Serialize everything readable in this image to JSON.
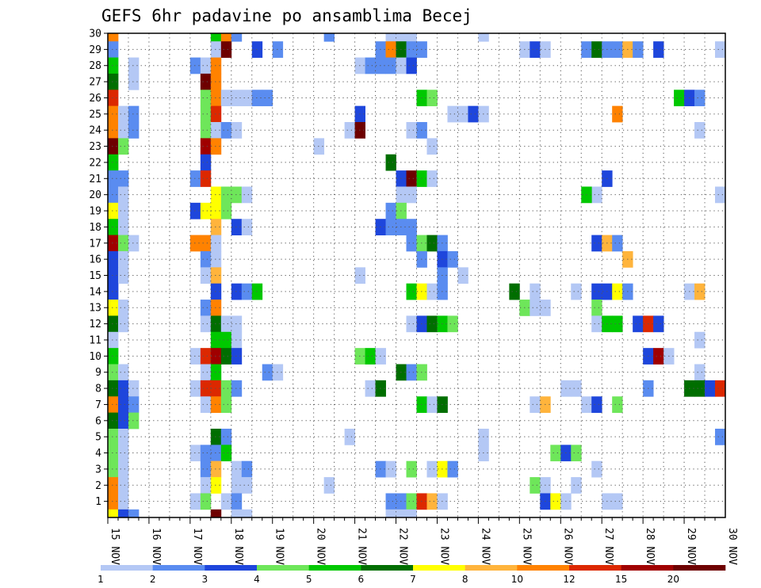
{
  "chart_data": {
    "type": "heatmap",
    "title": "GEFS 6hr padavine po ansamblima Becej",
    "xlabel": "",
    "ylabel": "",
    "x_tick_labels": [
      "15 NOV",
      "16 NOV",
      "17 NOV",
      "18 NOV",
      "19 NOV",
      "20 NOV",
      "21 NOV",
      "22 NOV",
      "23 NOV",
      "24 NOV",
      "25 NOV",
      "26 NOV",
      "27 NOV",
      "28 NOV",
      "29 NOV",
      "30 NOV"
    ],
    "y_tick_labels": [
      "1",
      "2",
      "3",
      "4",
      "5",
      "6",
      "7",
      "8",
      "9",
      "10",
      "11",
      "12",
      "13",
      "14",
      "15",
      "16",
      "17",
      "18",
      "19",
      "20",
      "21",
      "22",
      "23",
      "24",
      "25",
      "26",
      "27",
      "28",
      "29",
      "30"
    ],
    "grid": "dotted",
    "x_range_days": [
      15,
      30
    ],
    "y_range_members": [
      0,
      30
    ],
    "colorbar": {
      "labels": [
        "1",
        "2",
        "3",
        "4",
        "5",
        "6",
        "7",
        "8",
        "10",
        "12",
        "15",
        "20"
      ],
      "colors": [
        "#b4c8f5",
        "#5a8cf0",
        "#1e46dc",
        "#6ee65a",
        "#00c800",
        "#006e00",
        "#ffff00",
        "#ffb43c",
        "#ff8200",
        "#dc2800",
        "#a00000",
        "#6e0000"
      ]
    },
    "cells_format": "[member, day, precip_level_index]",
    "cells": [
      [
        30,
        15.0,
        9
      ],
      [
        30,
        17.5,
        5
      ],
      [
        30,
        17.75,
        9
      ],
      [
        30,
        18.0,
        2
      ],
      [
        30,
        20.25,
        2
      ],
      [
        30,
        21.75,
        1
      ],
      [
        30,
        22.0,
        1
      ],
      [
        30,
        22.25,
        1
      ],
      [
        30,
        24.0,
        1
      ],
      [
        29,
        15.0,
        2
      ],
      [
        29,
        17.5,
        1
      ],
      [
        29,
        17.75,
        12
      ],
      [
        29,
        18.5,
        3
      ],
      [
        29,
        19.0,
        2
      ],
      [
        29,
        21.5,
        2
      ],
      [
        29,
        21.75,
        9
      ],
      [
        29,
        22.0,
        6
      ],
      [
        29,
        22.25,
        2
      ],
      [
        29,
        22.5,
        2
      ],
      [
        29,
        25.0,
        1
      ],
      [
        29,
        25.25,
        3
      ],
      [
        29,
        25.5,
        1
      ],
      [
        29,
        26.5,
        2
      ],
      [
        29,
        26.75,
        6
      ],
      [
        29,
        27.0,
        2
      ],
      [
        29,
        27.25,
        2
      ],
      [
        29,
        27.5,
        8
      ],
      [
        29,
        27.75,
        2
      ],
      [
        29,
        28.25,
        3
      ],
      [
        29,
        29.75,
        1
      ],
      [
        28,
        15.0,
        5
      ],
      [
        28,
        15.5,
        1
      ],
      [
        28,
        17.0,
        2
      ],
      [
        28,
        17.25,
        1
      ],
      [
        28,
        17.5,
        9
      ],
      [
        28,
        21.0,
        1
      ],
      [
        28,
        21.25,
        2
      ],
      [
        28,
        21.5,
        2
      ],
      [
        28,
        21.75,
        2
      ],
      [
        28,
        22.0,
        1
      ],
      [
        28,
        22.25,
        3
      ],
      [
        27,
        15.0,
        6
      ],
      [
        27,
        15.5,
        1
      ],
      [
        27,
        17.25,
        12
      ],
      [
        27,
        17.5,
        9
      ],
      [
        26,
        15.0,
        10
      ],
      [
        26,
        17.25,
        4
      ],
      [
        26,
        17.5,
        9
      ],
      [
        26,
        17.75,
        1
      ],
      [
        26,
        18.0,
        1
      ],
      [
        26,
        18.25,
        1
      ],
      [
        26,
        18.5,
        2
      ],
      [
        26,
        18.75,
        2
      ],
      [
        26,
        22.5,
        5
      ],
      [
        26,
        22.75,
        4
      ],
      [
        26,
        28.75,
        5
      ],
      [
        26,
        29.0,
        3
      ],
      [
        26,
        29.25,
        2
      ],
      [
        25,
        15.0,
        9
      ],
      [
        25,
        15.25,
        1
      ],
      [
        25,
        15.5,
        2
      ],
      [
        25,
        17.25,
        4
      ],
      [
        25,
        17.5,
        10
      ],
      [
        25,
        21.0,
        3
      ],
      [
        25,
        23.25,
        1
      ],
      [
        25,
        23.5,
        1
      ],
      [
        25,
        23.75,
        3
      ],
      [
        25,
        24.0,
        1
      ],
      [
        25,
        27.25,
        9
      ],
      [
        24,
        15.0,
        9
      ],
      [
        24,
        15.25,
        1
      ],
      [
        24,
        15.5,
        2
      ],
      [
        24,
        17.25,
        4
      ],
      [
        24,
        17.5,
        1
      ],
      [
        24,
        17.75,
        2
      ],
      [
        24,
        18.0,
        1
      ],
      [
        24,
        20.75,
        1
      ],
      [
        24,
        21.0,
        12
      ],
      [
        24,
        22.25,
        1
      ],
      [
        24,
        22.5,
        2
      ],
      [
        24,
        29.25,
        1
      ],
      [
        23,
        15.0,
        12
      ],
      [
        23,
        15.25,
        4
      ],
      [
        23,
        17.25,
        11
      ],
      [
        23,
        17.5,
        9
      ],
      [
        23,
        20.0,
        1
      ],
      [
        23,
        22.75,
        1
      ],
      [
        22,
        15.0,
        5
      ],
      [
        22,
        17.25,
        3
      ],
      [
        22,
        21.75,
        6
      ],
      [
        21,
        15.0,
        2
      ],
      [
        21,
        15.25,
        2
      ],
      [
        21,
        17.0,
        2
      ],
      [
        21,
        17.25,
        10
      ],
      [
        21,
        22.0,
        3
      ],
      [
        21,
        22.25,
        12
      ],
      [
        21,
        22.5,
        5
      ],
      [
        21,
        22.75,
        1
      ],
      [
        21,
        27.0,
        3
      ],
      [
        20,
        15.0,
        2
      ],
      [
        20,
        15.25,
        1
      ],
      [
        20,
        17.5,
        7
      ],
      [
        20,
        17.75,
        4
      ],
      [
        20,
        18.0,
        4
      ],
      [
        20,
        18.25,
        1
      ],
      [
        20,
        22.0,
        1
      ],
      [
        20,
        22.25,
        1
      ],
      [
        20,
        26.75,
        1
      ],
      [
        20,
        26.5,
        5
      ],
      [
        20,
        29.75,
        1
      ],
      [
        19,
        15.0,
        7
      ],
      [
        19,
        15.25,
        1
      ],
      [
        19,
        17.0,
        3
      ],
      [
        19,
        17.25,
        7
      ],
      [
        19,
        17.5,
        7
      ],
      [
        19,
        17.75,
        4
      ],
      [
        19,
        21.75,
        2
      ],
      [
        19,
        22.0,
        4
      ],
      [
        18,
        15.0,
        5
      ],
      [
        18,
        15.25,
        1
      ],
      [
        18,
        17.5,
        8
      ],
      [
        18,
        18.0,
        3
      ],
      [
        18,
        18.25,
        1
      ],
      [
        18,
        21.5,
        3
      ],
      [
        18,
        21.75,
        2
      ],
      [
        18,
        22.0,
        2
      ],
      [
        18,
        22.25,
        2
      ],
      [
        17,
        15.0,
        11
      ],
      [
        17,
        15.25,
        4
      ],
      [
        17,
        15.5,
        1
      ],
      [
        17,
        17.0,
        9
      ],
      [
        17,
        17.25,
        9
      ],
      [
        17,
        17.5,
        1
      ],
      [
        17,
        22.25,
        2
      ],
      [
        17,
        22.5,
        4
      ],
      [
        17,
        22.75,
        6
      ],
      [
        17,
        23.0,
        2
      ],
      [
        17,
        26.75,
        3
      ],
      [
        17,
        27.0,
        8
      ],
      [
        17,
        27.25,
        2
      ],
      [
        16,
        15.0,
        3
      ],
      [
        16,
        15.25,
        1
      ],
      [
        16,
        17.25,
        2
      ],
      [
        16,
        17.5,
        1
      ],
      [
        16,
        22.5,
        2
      ],
      [
        16,
        23.0,
        3
      ],
      [
        16,
        23.25,
        2
      ],
      [
        16,
        27.5,
        8
      ],
      [
        15,
        15.0,
        3
      ],
      [
        15,
        15.25,
        1
      ],
      [
        15,
        17.25,
        1
      ],
      [
        15,
        17.5,
        8
      ],
      [
        15,
        21.0,
        1
      ],
      [
        15,
        23.0,
        2
      ],
      [
        15,
        23.5,
        1
      ],
      [
        14,
        15.0,
        3
      ],
      [
        14,
        17.5,
        3
      ],
      [
        14,
        18.0,
        3
      ],
      [
        14,
        18.25,
        2
      ],
      [
        14,
        18.5,
        5
      ],
      [
        14,
        22.25,
        5
      ],
      [
        14,
        22.5,
        7
      ],
      [
        14,
        22.75,
        1
      ],
      [
        14,
        23.0,
        2
      ],
      [
        14,
        24.75,
        6
      ],
      [
        14,
        25.25,
        1
      ],
      [
        14,
        26.25,
        1
      ],
      [
        14,
        26.75,
        3
      ],
      [
        14,
        27.0,
        3
      ],
      [
        14,
        27.25,
        7
      ],
      [
        14,
        27.5,
        2
      ],
      [
        14,
        29.0,
        1
      ],
      [
        14,
        29.25,
        8
      ],
      [
        13,
        15.0,
        7
      ],
      [
        13,
        15.25,
        1
      ],
      [
        13,
        17.25,
        2
      ],
      [
        13,
        17.5,
        9
      ],
      [
        13,
        25.0,
        4
      ],
      [
        13,
        25.25,
        1
      ],
      [
        13,
        25.5,
        1
      ],
      [
        13,
        26.75,
        4
      ],
      [
        12,
        15.0,
        6
      ],
      [
        12,
        15.25,
        1
      ],
      [
        12,
        17.25,
        1
      ],
      [
        12,
        17.5,
        6
      ],
      [
        12,
        17.75,
        1
      ],
      [
        12,
        18.0,
        1
      ],
      [
        12,
        22.25,
        1
      ],
      [
        12,
        22.5,
        3
      ],
      [
        12,
        22.75,
        6
      ],
      [
        12,
        23.0,
        5
      ],
      [
        12,
        23.25,
        4
      ],
      [
        12,
        26.75,
        1
      ],
      [
        12,
        27.0,
        5
      ],
      [
        12,
        27.25,
        5
      ],
      [
        12,
        27.75,
        3
      ],
      [
        12,
        28.0,
        10
      ],
      [
        12,
        28.25,
        3
      ],
      [
        11,
        15.0,
        1
      ],
      [
        11,
        17.5,
        5
      ],
      [
        11,
        17.75,
        5
      ],
      [
        11,
        18.0,
        1
      ],
      [
        11,
        29.25,
        1
      ],
      [
        10,
        15.0,
        5
      ],
      [
        10,
        17.0,
        1
      ],
      [
        10,
        17.25,
        10
      ],
      [
        10,
        17.5,
        11
      ],
      [
        10,
        17.75,
        6
      ],
      [
        10,
        18.0,
        3
      ],
      [
        10,
        21.0,
        4
      ],
      [
        10,
        21.25,
        5
      ],
      [
        10,
        21.5,
        1
      ],
      [
        10,
        28.0,
        3
      ],
      [
        10,
        28.25,
        11
      ],
      [
        10,
        28.5,
        1
      ],
      [
        9,
        15.0,
        4
      ],
      [
        9,
        15.25,
        1
      ],
      [
        9,
        17.25,
        1
      ],
      [
        9,
        17.5,
        5
      ],
      [
        9,
        18.75,
        2
      ],
      [
        9,
        19.0,
        1
      ],
      [
        9,
        22.0,
        6
      ],
      [
        9,
        22.25,
        2
      ],
      [
        9,
        22.5,
        4
      ],
      [
        9,
        29.25,
        1
      ],
      [
        8,
        15.0,
        6
      ],
      [
        8,
        15.25,
        3
      ],
      [
        8,
        15.5,
        1
      ],
      [
        8,
        17.0,
        1
      ],
      [
        8,
        17.25,
        10
      ],
      [
        8,
        17.5,
        10
      ],
      [
        8,
        17.75,
        4
      ],
      [
        8,
        18.0,
        2
      ],
      [
        8,
        21.25,
        1
      ],
      [
        8,
        21.5,
        6
      ],
      [
        8,
        26.0,
        1
      ],
      [
        8,
        26.25,
        1
      ],
      [
        8,
        28.0,
        2
      ],
      [
        8,
        29.0,
        6
      ],
      [
        8,
        29.25,
        6
      ],
      [
        8,
        29.5,
        3
      ],
      [
        8,
        29.75,
        10
      ],
      [
        7,
        15.0,
        9
      ],
      [
        7,
        15.25,
        3
      ],
      [
        7,
        15.5,
        2
      ],
      [
        7,
        17.25,
        1
      ],
      [
        7,
        17.5,
        9
      ],
      [
        7,
        17.75,
        4
      ],
      [
        7,
        22.5,
        5
      ],
      [
        7,
        22.75,
        1
      ],
      [
        7,
        23.0,
        6
      ],
      [
        7,
        25.25,
        1
      ],
      [
        7,
        25.5,
        8
      ],
      [
        7,
        26.5,
        1
      ],
      [
        7,
        26.75,
        3
      ],
      [
        7,
        27.25,
        4
      ],
      [
        6,
        15.0,
        6
      ],
      [
        6,
        15.25,
        3
      ],
      [
        6,
        15.5,
        4
      ],
      [
        5,
        15.0,
        4
      ],
      [
        5,
        15.25,
        1
      ],
      [
        5,
        17.5,
        6
      ],
      [
        5,
        17.75,
        2
      ],
      [
        5,
        20.75,
        1
      ],
      [
        5,
        24.0,
        1
      ],
      [
        5,
        29.75,
        2
      ],
      [
        4,
        15.0,
        4
      ],
      [
        4,
        15.25,
        1
      ],
      [
        4,
        17.0,
        1
      ],
      [
        4,
        17.25,
        2
      ],
      [
        4,
        17.5,
        2
      ],
      [
        4,
        17.75,
        5
      ],
      [
        4,
        24.0,
        1
      ],
      [
        4,
        25.75,
        4
      ],
      [
        4,
        26.0,
        3
      ],
      [
        4,
        26.25,
        4
      ],
      [
        3,
        15.0,
        4
      ],
      [
        3,
        15.25,
        1
      ],
      [
        3,
        17.25,
        2
      ],
      [
        3,
        17.5,
        8
      ],
      [
        3,
        18.0,
        1
      ],
      [
        3,
        18.25,
        2
      ],
      [
        3,
        21.5,
        2
      ],
      [
        3,
        21.75,
        1
      ],
      [
        3,
        22.25,
        4
      ],
      [
        3,
        22.75,
        1
      ],
      [
        3,
        23.0,
        7
      ],
      [
        3,
        23.25,
        2
      ],
      [
        3,
        26.75,
        1
      ],
      [
        2,
        15.0,
        9
      ],
      [
        2,
        15.25,
        1
      ],
      [
        2,
        17.25,
        1
      ],
      [
        2,
        17.5,
        7
      ],
      [
        2,
        18.0,
        1
      ],
      [
        2,
        18.25,
        1
      ],
      [
        2,
        20.25,
        1
      ],
      [
        2,
        25.25,
        4
      ],
      [
        2,
        25.5,
        1
      ],
      [
        2,
        26.25,
        1
      ],
      [
        1,
        15.0,
        9
      ],
      [
        1,
        15.25,
        1
      ],
      [
        1,
        17.0,
        1
      ],
      [
        1,
        17.25,
        4
      ],
      [
        1,
        17.75,
        1
      ],
      [
        1,
        18.0,
        2
      ],
      [
        1,
        21.75,
        2
      ],
      [
        1,
        22.0,
        2
      ],
      [
        1,
        22.25,
        4
      ],
      [
        1,
        22.5,
        10
      ],
      [
        1,
        22.75,
        8
      ],
      [
        1,
        23.0,
        1
      ],
      [
        1,
        25.5,
        3
      ],
      [
        1,
        25.75,
        7
      ],
      [
        1,
        26.0,
        1
      ],
      [
        1,
        27.0,
        1
      ],
      [
        1,
        27.25,
        1
      ],
      [
        0,
        15.0,
        7
      ],
      [
        0,
        15.25,
        3
      ],
      [
        0,
        15.5,
        2
      ],
      [
        0,
        17.5,
        12
      ],
      [
        0,
        18.0,
        1
      ],
      [
        0,
        18.25,
        1
      ],
      [
        0,
        21.75,
        1
      ],
      [
        0,
        22.0,
        1
      ],
      [
        0,
        22.25,
        1
      ]
    ]
  }
}
